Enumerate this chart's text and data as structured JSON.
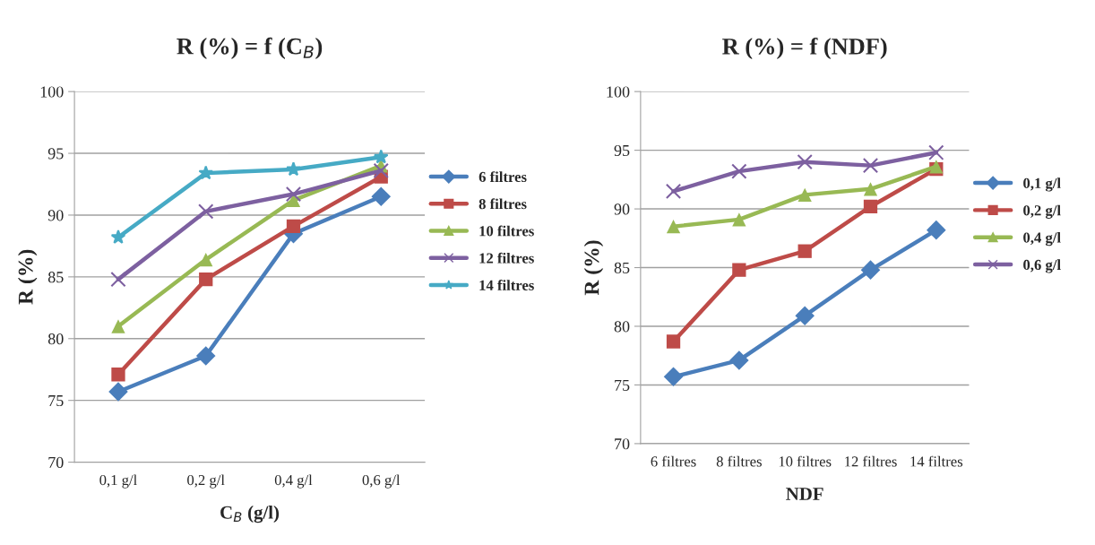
{
  "chart_data": [
    {
      "type": "line",
      "title": "R (%) = f (C$_{B}$)",
      "xlabel": "C$_{B}$ (g/l)",
      "ylabel": "R (%)",
      "categories": [
        "0,1 g/l",
        "0,2 g/l",
        "0,4 g/l",
        "0,6 g/l"
      ],
      "ylim": [
        70,
        100
      ],
      "yticks": [
        70,
        75,
        80,
        85,
        90,
        95,
        100
      ],
      "grid": "y",
      "legend": "right",
      "series": [
        {
          "name": "6 filtres",
          "color": "#4a7ebb",
          "marker": "diamond",
          "values": [
            75.7,
            78.6,
            88.5,
            91.5
          ]
        },
        {
          "name": "8 filtres",
          "color": "#be4b48",
          "marker": "square",
          "values": [
            77.1,
            84.8,
            89.1,
            93.1
          ]
        },
        {
          "name": "10 filtres",
          "color": "#98b954",
          "marker": "triangle",
          "values": [
            81.0,
            86.4,
            91.2,
            94.0
          ]
        },
        {
          "name": "12 filtres",
          "color": "#7d60a0",
          "marker": "cross",
          "values": [
            84.8,
            90.3,
            91.7,
            93.6
          ]
        },
        {
          "name": "14 filtres",
          "color": "#46aac5",
          "marker": "star",
          "values": [
            88.2,
            93.4,
            93.7,
            94.7
          ]
        }
      ]
    },
    {
      "type": "line",
      "title": "R (%) = f (NDF)",
      "xlabel": "NDF",
      "ylabel": "R (%)",
      "categories": [
        "6 filtres",
        "8 filtres",
        "10 filtres",
        "12 filtres",
        "14 filtres"
      ],
      "ylim": [
        70,
        100
      ],
      "yticks": [
        70,
        75,
        80,
        85,
        90,
        95,
        100
      ],
      "grid": "y",
      "legend": "right",
      "series": [
        {
          "name": "0,1 g/l",
          "color": "#4a7ebb",
          "marker": "diamond",
          "values": [
            75.7,
            77.1,
            80.9,
            84.8,
            88.2
          ]
        },
        {
          "name": "0,2 g/l",
          "color": "#be4b48",
          "marker": "square",
          "values": [
            78.7,
            84.8,
            86.4,
            90.2,
            93.4
          ]
        },
        {
          "name": "0,4 g/l",
          "color": "#98b954",
          "marker": "triangle",
          "values": [
            88.5,
            89.1,
            91.2,
            91.7,
            93.6
          ]
        },
        {
          "name": "0,6 g/l",
          "color": "#7d60a0",
          "marker": "cross",
          "values": [
            91.5,
            93.2,
            94.0,
            93.7,
            94.8
          ]
        }
      ]
    }
  ]
}
